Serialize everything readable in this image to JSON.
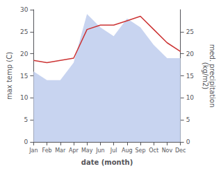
{
  "chart_data": {
    "type": "line",
    "categories": [
      "Jan",
      "Feb",
      "Mar",
      "Apr",
      "May",
      "Jun",
      "Jul",
      "Aug",
      "Sep",
      "Oct",
      "Nov",
      "Dec"
    ],
    "xlabel": "date (month)",
    "ylabel": "max temp (C)",
    "y2label": "med. precipitation\n(kg/m2)",
    "ylim": [
      0,
      30
    ],
    "yticks": [
      0,
      5,
      10,
      15,
      20,
      25,
      30
    ],
    "y2lim": [
      0,
      30
    ],
    "y2ticks": [
      0,
      5,
      10,
      15,
      20,
      25
    ],
    "grid": false,
    "series": [
      {
        "type": "area",
        "color": "#c8d4f0",
        "axis": "y2",
        "values": [
          16,
          14,
          14,
          18,
          29,
          26,
          24,
          28,
          26,
          22,
          19,
          19
        ]
      },
      {
        "type": "line",
        "color": "#cc3333",
        "values": [
          18.5,
          18.0,
          18.5,
          19.0,
          25.5,
          26.5,
          26.5,
          27.5,
          28.5,
          25.5,
          22.5,
          20.5
        ]
      }
    ]
  }
}
